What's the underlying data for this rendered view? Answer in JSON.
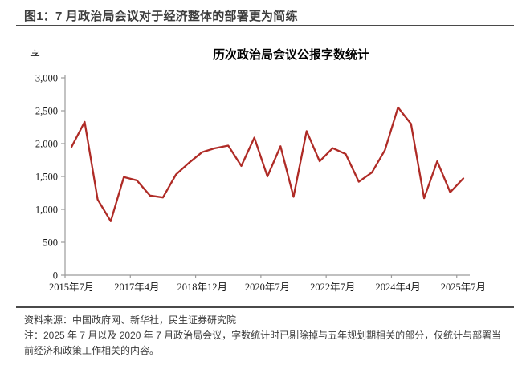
{
  "header": {
    "title": "图1：7 月政治局会议对于经济整体的部署更为简练"
  },
  "chart": {
    "unit_label": "字",
    "title": "历次政治局会议公报字数统计"
  },
  "chart_data": {
    "type": "line",
    "title": "历次政治局会议公报字数统计",
    "ylabel": "字",
    "ylim": [
      0,
      3000
    ],
    "ytick_step": 500,
    "ytick_labels": [
      "0",
      "500",
      "1,000",
      "1,500",
      "2,000",
      "2,500",
      "3,000"
    ],
    "x_tick_labels": [
      "2015年7月",
      "2017年4月",
      "2018年12月",
      "2020年7月",
      "2022年7月",
      "2024年4月",
      "2025年7月"
    ],
    "x_tick_indices": [
      0,
      5,
      10,
      15,
      20,
      25,
      30
    ],
    "grid": false,
    "legend": "none",
    "series": [
      {
        "name": "政治局会议公报字数",
        "color": "#AF2B26",
        "values": [
          1950,
          2330,
          1150,
          820,
          1490,
          1440,
          1210,
          1180,
          1530,
          1710,
          1870,
          1930,
          1970,
          1660,
          2090,
          1500,
          1960,
          1190,
          2190,
          1730,
          1930,
          1840,
          1420,
          1560,
          1900,
          2550,
          2300,
          1170,
          1730,
          1260,
          1470
        ]
      }
    ]
  },
  "footer": {
    "source": "资料来源：中国政府网、新华社，民生证券研究院",
    "note": "注：2025 年 7 月以及 2020 年 7 月政治局会议，字数统计时已剔除掉与五年规划期相关的部分，仅统计与部署当前经济和政策工作相关的内容。"
  },
  "colors": {
    "line": "#AF2B26",
    "rule": "#4A4A4A",
    "axis": "#9B9B9B",
    "text": "#3D3D3D"
  }
}
